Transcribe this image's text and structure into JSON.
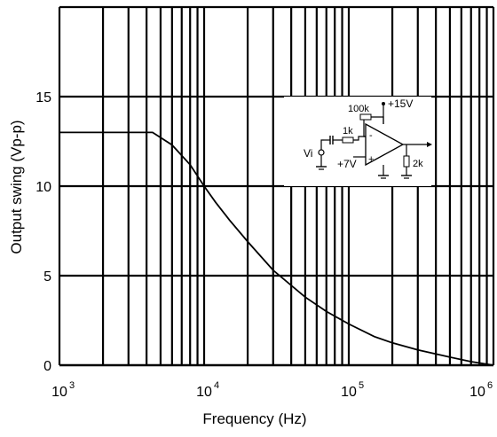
{
  "chart_data": {
    "type": "line",
    "title": "",
    "xlabel": "Frequency  (Hz)",
    "ylabel": "Output swing   (Vp-p)",
    "xscale": "log",
    "xlim": [
      1000,
      1000000
    ],
    "ylim": [
      0,
      20
    ],
    "grid": true,
    "x_ticks": [
      {
        "value": 1000,
        "base": "10",
        "exp": "3"
      },
      {
        "value": 10000,
        "base": "10",
        "exp": "4"
      },
      {
        "value": 100000,
        "base": "10",
        "exp": "5"
      },
      {
        "value": 1000000,
        "base": "10",
        "exp": "6"
      }
    ],
    "y_ticks": [
      {
        "value": 0,
        "label": "0"
      },
      {
        "value": 5,
        "label": "5"
      },
      {
        "value": 10,
        "label": "10"
      },
      {
        "value": 15,
        "label": "15"
      }
    ],
    "series": [
      {
        "x": [
          1000,
          2000,
          4400,
          6000,
          8000,
          10000,
          12000,
          15000,
          20000,
          30000,
          50000,
          70000,
          100000,
          150000,
          200000,
          300000,
          500000,
          700000,
          1000000
        ],
        "y": [
          13,
          13,
          13,
          12.3,
          11.2,
          10.0,
          9.1,
          8.1,
          6.9,
          5.3,
          3.8,
          3.0,
          2.3,
          1.6,
          1.25,
          0.85,
          0.45,
          0.2,
          0
        ]
      }
    ],
    "inset": {
      "labels": {
        "feedback_resistor": "100k",
        "supply": "+15V",
        "input_resistor": "1k",
        "input": "Vi",
        "bias": "+7V",
        "load": "2k",
        "inverting": "-",
        "noninverting": "+"
      }
    }
  }
}
